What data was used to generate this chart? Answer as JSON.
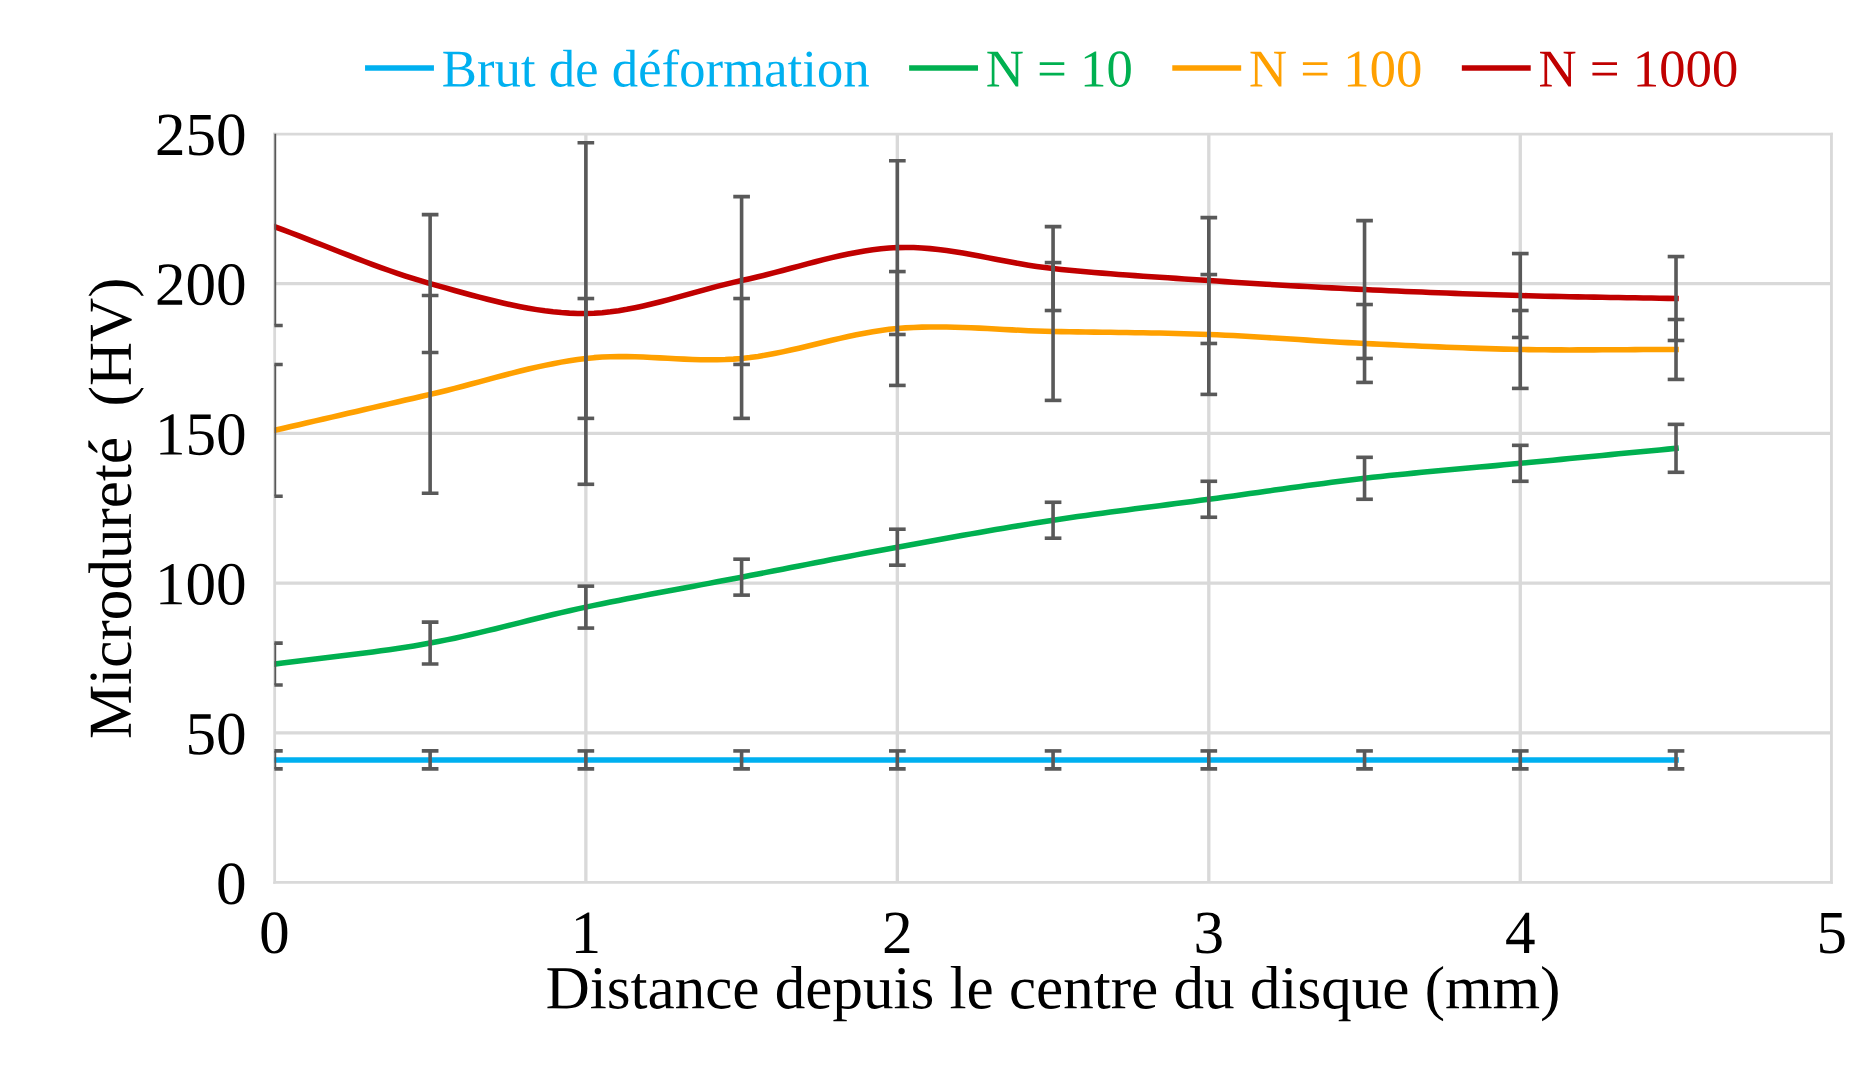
{
  "chart_data": {
    "type": "line",
    "xlabel": "Distance depuis le centre du disque (mm)",
    "ylabel": "Microdureté  (HV)",
    "x": [
      0,
      0.5,
      1,
      1.5,
      2,
      2.5,
      3,
      3.5,
      4,
      4.5
    ],
    "xlim": [
      0,
      5
    ],
    "xticks": [
      0,
      1,
      2,
      3,
      4,
      5
    ],
    "ylim": [
      0,
      250
    ],
    "yticks": [
      0,
      50,
      100,
      150,
      200,
      250
    ],
    "grid": true,
    "legend": "top",
    "marker": "none",
    "line_style": "solid",
    "series": [
      {
        "name": "Brut de déformation",
        "color": "#00b0f0",
        "values": [
          41,
          41,
          41,
          41,
          41,
          41,
          41,
          41,
          41,
          41
        ],
        "errors": [
          3,
          3,
          3,
          3,
          3,
          3,
          3,
          3,
          3,
          3
        ]
      },
      {
        "name": "N = 10",
        "color": "#00b050",
        "values": [
          73,
          80,
          92,
          102,
          112,
          121,
          128,
          135,
          140,
          145
        ],
        "errors": [
          7,
          7,
          7,
          6,
          6,
          6,
          6,
          7,
          6,
          8
        ]
      },
      {
        "name": "N = 100",
        "color": "#ffa000",
        "values": [
          151,
          163,
          175,
          175,
          185,
          184,
          183,
          180,
          178,
          178
        ],
        "errors": [
          22,
          33,
          20,
          20,
          19,
          23,
          20,
          13,
          13,
          10
        ]
      },
      {
        "name": "N = 1000",
        "color": "#c00000",
        "values": [
          219,
          200,
          190,
          201,
          212,
          205,
          201,
          198,
          196,
          195
        ],
        "errors": [
          33,
          23,
          57,
          28,
          29,
          14,
          21,
          23,
          14,
          14
        ]
      }
    ]
  }
}
